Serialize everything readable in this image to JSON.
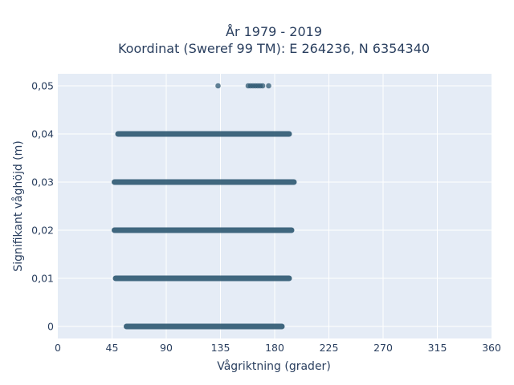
{
  "chart_data": {
    "type": "scatter",
    "title_line1": "År 1979 - 2019",
    "title_line2": "Koordinat (Sweref 99 TM): E 264236, N 6354340",
    "xlabel": "Vågriktning (grader)",
    "ylabel": "Signifikant våghöjd (m)",
    "xlim": [
      0,
      360
    ],
    "ylim": [
      -0.0025,
      0.0525
    ],
    "xticks": [
      0,
      45,
      90,
      135,
      180,
      225,
      270,
      315,
      360
    ],
    "xtick_labels": [
      "0",
      "45",
      "90",
      "135",
      "180",
      "225",
      "270",
      "315",
      "360"
    ],
    "yticks": [
      0,
      0.01,
      0.02,
      0.03,
      0.04,
      0.05
    ],
    "ytick_labels": [
      "0",
      "0,01",
      "0,02",
      "0,03",
      "0,04",
      "0,05"
    ],
    "grid": true,
    "colors": {
      "marker": "#2e5872",
      "plot_bg": "#e5ecf6",
      "grid": "#ffffff",
      "text": "#2a3f5f"
    },
    "bands": [
      {
        "y": 0.0,
        "x_min": 57,
        "x_max": 186
      },
      {
        "y": 0.01,
        "x_min": 48,
        "x_max": 192
      },
      {
        "y": 0.02,
        "x_min": 47,
        "x_max": 194
      },
      {
        "y": 0.03,
        "x_min": 47,
        "x_max": 196
      },
      {
        "y": 0.04,
        "x_min": 50,
        "x_max": 192
      }
    ],
    "points": [
      {
        "x": 133,
        "y": 0.05
      },
      {
        "x": 158,
        "y": 0.05
      },
      {
        "x": 160,
        "y": 0.05
      },
      {
        "x": 162,
        "y": 0.05
      },
      {
        "x": 164,
        "y": 0.05
      },
      {
        "x": 166,
        "y": 0.05
      },
      {
        "x": 168,
        "y": 0.05
      },
      {
        "x": 170,
        "y": 0.05
      },
      {
        "x": 175,
        "y": 0.05
      }
    ]
  }
}
